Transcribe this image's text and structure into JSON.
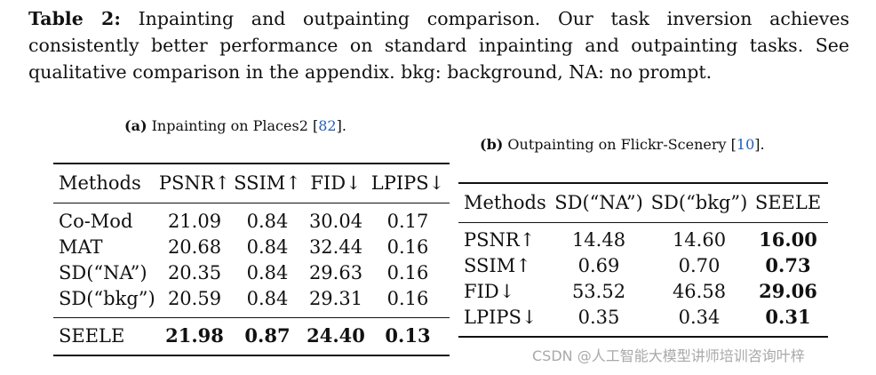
{
  "caption": {
    "label": "Table 2:",
    "text": " Inpainting and outpainting comparison. Our task inversion achieves consistently better performance on standard inpainting and outpainting tasks. See qualitative comparison in the appendix. bkg: background, NA: no prompt."
  },
  "table_a": {
    "sub_label": "(a)",
    "caption_text": " Inpainting on Places2 ",
    "cite": "82",
    "headers": [
      "Methods",
      "PSNR↑",
      "SSIM↑",
      "FID↓",
      "LPIPS↓"
    ],
    "rows": [
      {
        "method": "Co-Mod",
        "psnr": "21.09",
        "ssim": "0.84",
        "fid": "30.04",
        "lpips": "0.17"
      },
      {
        "method": "MAT",
        "psnr": "20.68",
        "ssim": "0.84",
        "fid": "32.44",
        "lpips": "0.16"
      },
      {
        "method": "SD(“NA”)",
        "psnr": "20.35",
        "ssim": "0.84",
        "fid": "29.63",
        "lpips": "0.16"
      },
      {
        "method": "SD(“bkg”)",
        "psnr": "20.59",
        "ssim": "0.84",
        "fid": "29.31",
        "lpips": "0.16"
      }
    ],
    "best_row": {
      "method": "SEELE",
      "psnr": "21.98",
      "ssim": "0.87",
      "fid": "24.40",
      "lpips": "0.13"
    }
  },
  "table_b": {
    "sub_label": "(b)",
    "caption_text": " Outpainting on Flickr-Scenery ",
    "cite": "10",
    "headers": [
      "Methods",
      "SD(“NA”)",
      "SD(“bkg”)",
      "SEELE"
    ],
    "rows": [
      {
        "metric": "PSNR↑",
        "sd_na": "14.48",
        "sd_bkg": "14.60",
        "seele": "16.00"
      },
      {
        "metric": "SSIM↑",
        "sd_na": "0.69",
        "sd_bkg": "0.70",
        "seele": "0.73"
      },
      {
        "metric": "FID↓",
        "sd_na": "53.52",
        "sd_bkg": "46.58",
        "seele": "29.06"
      },
      {
        "metric": "LPIPS↓",
        "sd_na": "0.35",
        "sd_bkg": "0.34",
        "seele": "0.31"
      }
    ]
  },
  "watermark": "CSDN @人工智能大模型讲师培训咨询叶梓"
}
